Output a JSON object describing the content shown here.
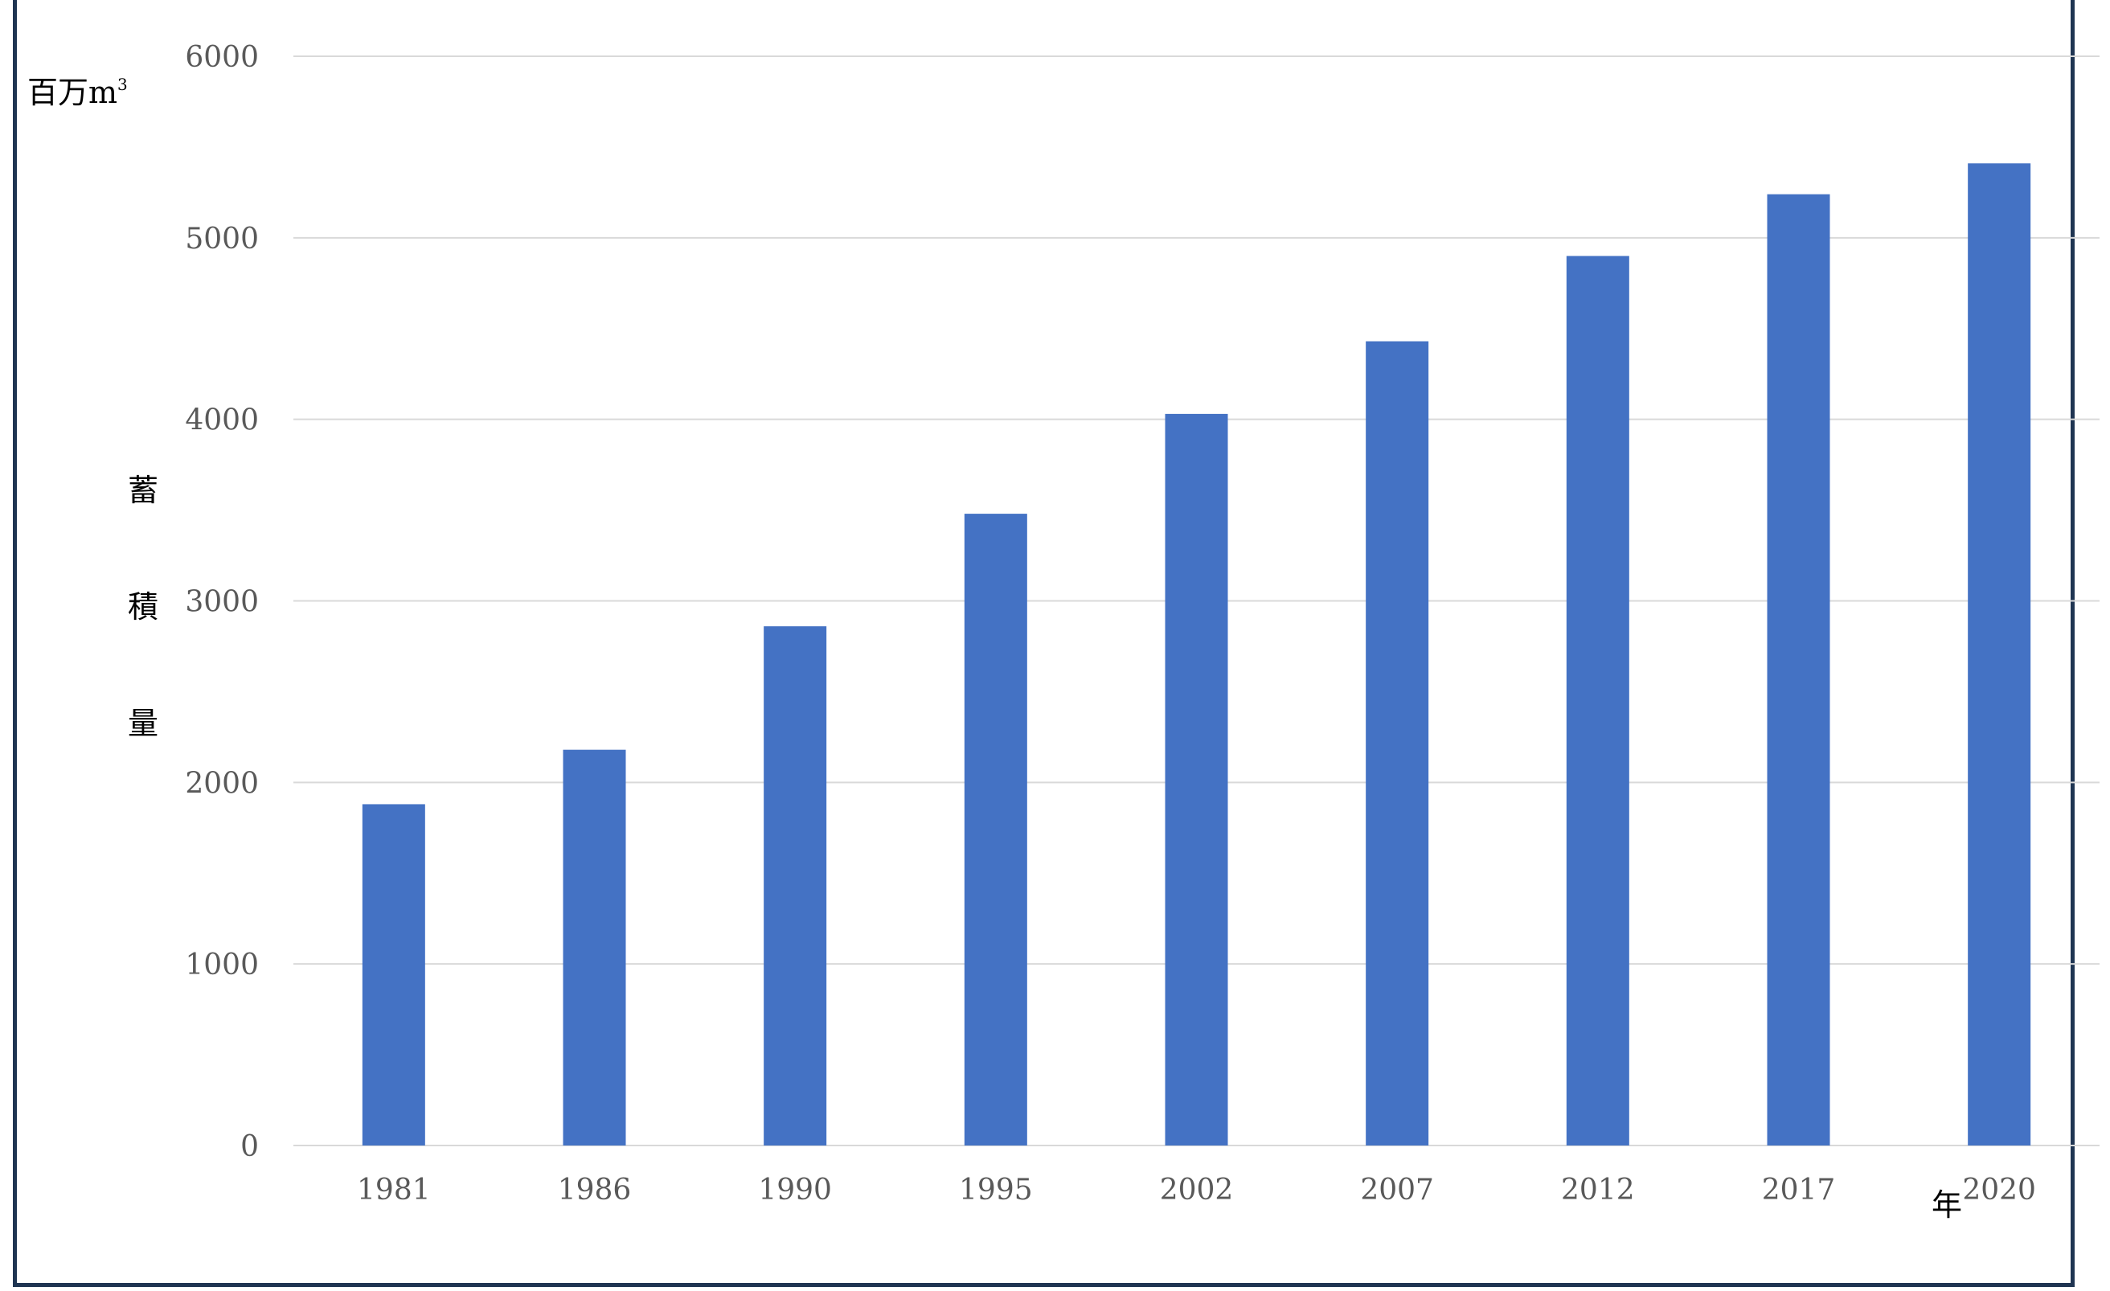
{
  "chart_data": {
    "type": "bar",
    "categories": [
      "1981",
      "1986",
      "1990",
      "1995",
      "2002",
      "2007",
      "2012",
      "2017",
      "2020"
    ],
    "series": [
      {
        "values": [
          1880,
          2180,
          2860,
          3480,
          4030,
          4430,
          4900,
          5240,
          5410
        ]
      }
    ],
    "ylim": [
      0,
      6000
    ],
    "yticks": [
      0,
      1000,
      2000,
      3000,
      4000,
      5000,
      6000
    ],
    "yticks_labels": [
      "0",
      "1000",
      "2000",
      "3000",
      "4000",
      "5000",
      "6000"
    ],
    "ylabel_chars": [
      "蓄",
      "積",
      "量"
    ],
    "y_unit": {
      "base": "百万m",
      "sup": "3"
    },
    "xlabel": "年",
    "grid": true,
    "legend": "none",
    "colors": {
      "bar": "#4472c4",
      "grid": "#d9d9d9",
      "frame": "#1f3552",
      "tick_text": "#595959"
    }
  }
}
